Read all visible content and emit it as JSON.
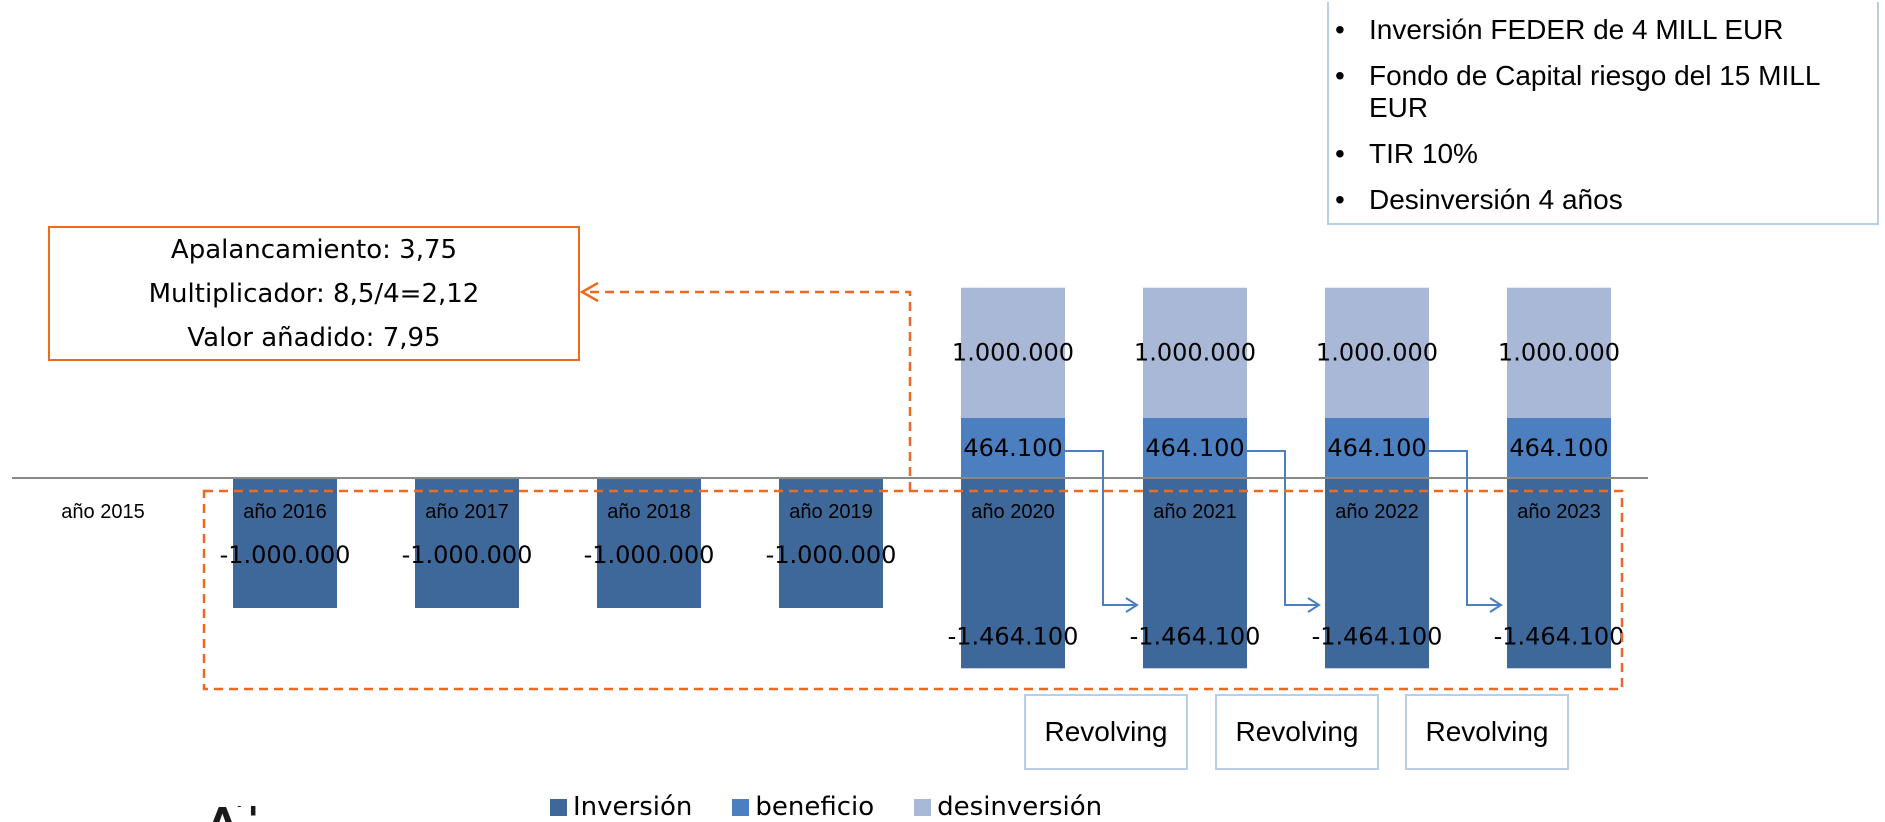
{
  "info_box": {
    "items": [
      "Inversión FEDER de 4 MILL EUR",
      "Fondo de Capital riesgo del 15 MILL EUR",
      "TIR 10%",
      "Desinversión 4 años"
    ]
  },
  "kpi_box": {
    "line1": "Apalancamiento:  3,75",
    "line2": "Multiplicador:  8,5/4=2,12",
    "line3": "Valor añadido:  7,95"
  },
  "revolving": [
    "Revolving",
    "Revolving",
    "Revolving"
  ],
  "partial_logo": "ᴧ′ᴵ",
  "colors": {
    "inversion": "#3f689a",
    "beneficio": "#4c7fbf",
    "desinversion": "#a9b8d6",
    "orange": "#ee6a1f",
    "axis": "#888888",
    "arrow": "#4a7fc1"
  },
  "chart_data": {
    "type": "bar",
    "stacked": true,
    "categories": [
      "año 2015",
      "año 2016",
      "año 2017",
      "año 2018",
      "año 2019",
      "año 2020",
      "año 2021",
      "año 2022",
      "año 2023"
    ],
    "series": [
      {
        "name": "Inversión",
        "values": [
          0,
          -1000000,
          -1000000,
          -1000000,
          -1000000,
          -1464100,
          -1464100,
          -1464100,
          -1464100
        ]
      },
      {
        "name": "beneficio",
        "values": [
          0,
          0,
          0,
          0,
          0,
          464100,
          464100,
          464100,
          464100
        ]
      },
      {
        "name": "desinversión",
        "values": [
          0,
          0,
          0,
          0,
          0,
          1000000,
          1000000,
          1000000,
          1000000
        ]
      }
    ],
    "data_labels": {
      "Inversión": [
        "",
        "-1.000.000",
        "-1.000.000",
        "-1.000.000",
        "-1.000.000",
        "-1.464.100",
        "-1.464.100",
        "-1.464.100",
        "-1.464.100"
      ],
      "beneficio": [
        "",
        "",
        "",
        "",
        "",
        "464.100",
        "464.100",
        "464.100",
        "464.100"
      ],
      "desinversión": [
        "",
        "",
        "",
        "",
        "",
        "1.000.000",
        "1.000.000",
        "1.000.000",
        "1.000.000"
      ]
    },
    "ylim": [
      -1464100,
      1464100
    ],
    "legend_position": "bottom",
    "grid": false
  }
}
